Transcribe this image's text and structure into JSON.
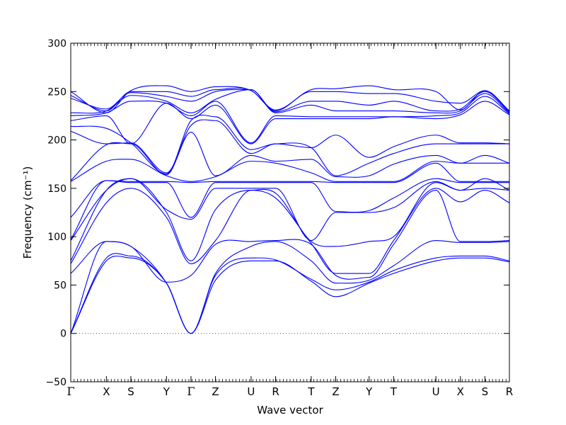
{
  "chart_data": {
    "type": "line",
    "title": "",
    "xlabel": "Wave vector",
    "ylabel": "Frequency (cm⁻¹)",
    "ylim": [
      -50,
      300
    ],
    "yticks": [
      -50,
      0,
      50,
      100,
      150,
      200,
      250,
      300
    ],
    "ytick_labels": [
      "−50",
      "0",
      "50",
      "100",
      "150",
      "200",
      "250",
      "300"
    ],
    "grid": false,
    "zero_line": {
      "y": 0,
      "style": "dotted",
      "color": "#555555"
    },
    "line_color": "#0000ff",
    "kpoints": [
      {
        "label": "Γ",
        "x": 0.0
      },
      {
        "label": "X",
        "x": 1.6
      },
      {
        "label": "S",
        "x": 2.7
      },
      {
        "label": "Y",
        "x": 4.3
      },
      {
        "label": "Γ",
        "x": 5.4
      },
      {
        "label": "Z",
        "x": 6.5
      },
      {
        "label": "U",
        "x": 8.1
      },
      {
        "label": "R",
        "x": 9.2
      },
      {
        "label": "T",
        "x": 10.8
      },
      {
        "label": "Z",
        "x": 11.9
      },
      {
        "label": "Y",
        "x": 13.4
      },
      {
        "label": "T",
        "x": 14.5
      },
      {
        "label": "U",
        "x": 16.4
      },
      {
        "label": "X",
        "x": 17.5
      },
      {
        "label": "S",
        "x": 18.6
      },
      {
        "label": "R",
        "x": 19.7
      }
    ],
    "bands_at_kpoints": [
      [
        0,
        0,
        0,
        62,
        72,
        75,
        96,
        97,
        120,
        157,
        158,
        209,
        214,
        220,
        225,
        228,
        243,
        246,
        250
      ],
      [
        75,
        78,
        95,
        95,
        135,
        148,
        148,
        158,
        158,
        178,
        195,
        196,
        212,
        225,
        228,
        230,
        232,
        230,
        228
      ],
      [
        78,
        80,
        90,
        90,
        150,
        160,
        160,
        156,
        157,
        180,
        196,
        197,
        197,
        196,
        240,
        246,
        249,
        250,
        251
      ],
      [
        52,
        52,
        52,
        53,
        120,
        125,
        128,
        156,
        157,
        163,
        164,
        166,
        165,
        238,
        238,
        240,
        245,
        250,
        256
      ],
      [
        0,
        0,
        0,
        60,
        72,
        75,
        118,
        120,
        156,
        157,
        208,
        215,
        220,
        222,
        225,
        228,
        240,
        245,
        250
      ],
      [
        55,
        60,
        62,
        92,
        96,
        128,
        150,
        156,
        157,
        162,
        163,
        220,
        224,
        236,
        240,
        242,
        250,
        252,
        255
      ],
      [
        75,
        78,
        90,
        95,
        148,
        148,
        150,
        156,
        157,
        178,
        184,
        186,
        190,
        196,
        197,
        252,
        252,
        251,
        251
      ],
      [
        75,
        76,
        95,
        96,
        140,
        145,
        150,
        156,
        157,
        176,
        178,
        196,
        196,
        222,
        225,
        228,
        229,
        230,
        231
      ],
      [
        54,
        56,
        75,
        92,
        93,
        95,
        96,
        156,
        157,
        166,
        180,
        192,
        192,
        222,
        224,
        236,
        240,
        250,
        252
      ],
      [
        38,
        45,
        52,
        60,
        62,
        90,
        125,
        126,
        156,
        157,
        162,
        163,
        205,
        222,
        224,
        230,
        240,
        250,
        253
      ],
      [
        52,
        53,
        55,
        58,
        62,
        95,
        125,
        127,
        156,
        157,
        163,
        176,
        182,
        222,
        224,
        230,
        236,
        248,
        256
      ],
      [
        62,
        65,
        70,
        92,
        96,
        100,
        130,
        140,
        156,
        157,
        175,
        186,
        193,
        224,
        224,
        230,
        240,
        248,
        252
      ],
      [
        75,
        78,
        96,
        148,
        150,
        156,
        157,
        160,
        176,
        178,
        184,
        196,
        205,
        222,
        225,
        228,
        230,
        240,
        250
      ],
      [
        78,
        80,
        94,
        95,
        136,
        148,
        148,
        156,
        157,
        176,
        176,
        196,
        197,
        226,
        228,
        230,
        232,
        238,
        231
      ],
      [
        78,
        80,
        94,
        95,
        148,
        150,
        160,
        156,
        157,
        176,
        184,
        196,
        197,
        240,
        245,
        248,
        250,
        251,
        251
      ],
      [
        74,
        75,
        95,
        96,
        135,
        148,
        148,
        156,
        157,
        176,
        176,
        196,
        196,
        226,
        227,
        228,
        229,
        230,
        230
      ]
    ]
  }
}
